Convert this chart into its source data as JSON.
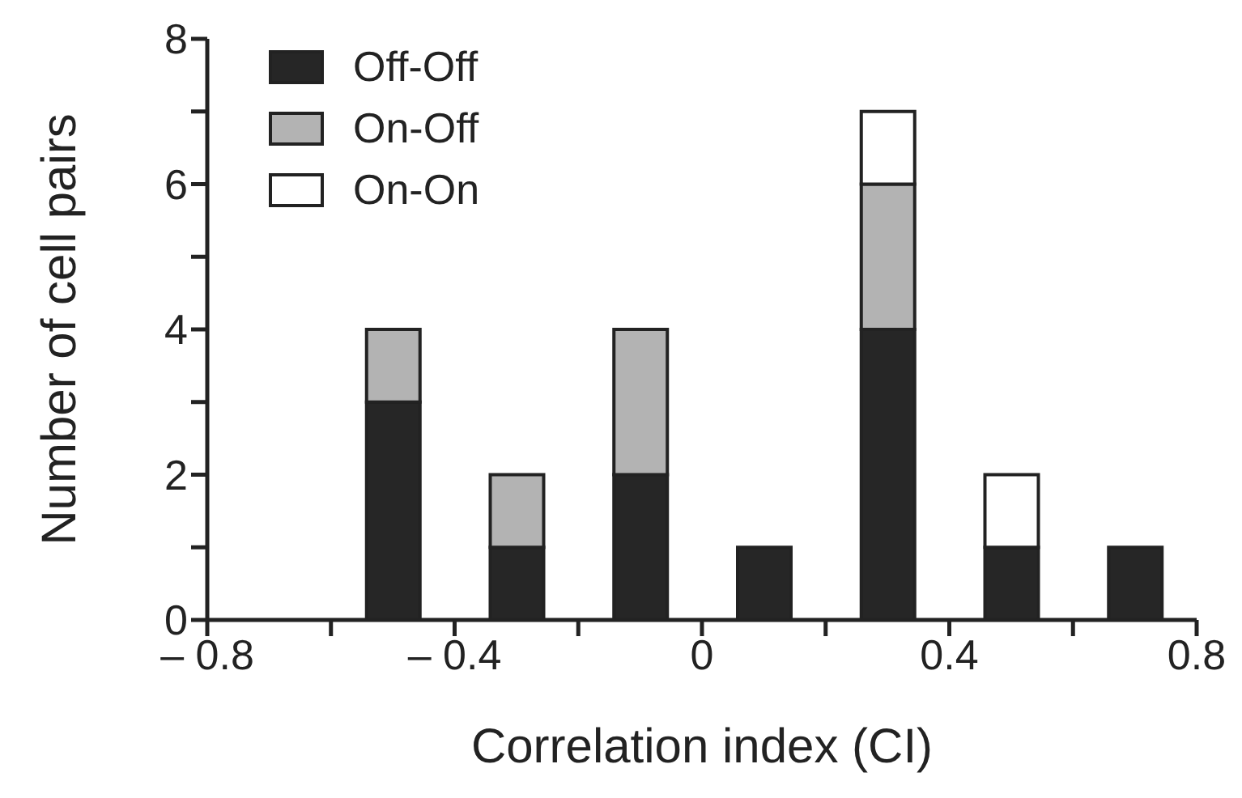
{
  "chart_data": {
    "type": "bar",
    "stacked": true,
    "xlabel": "Correlation index (CI)",
    "ylabel": "Number of cell pairs",
    "x": [
      -0.5,
      -0.3,
      -0.1,
      0.1,
      0.3,
      0.5,
      0.7
    ],
    "series": [
      {
        "name": "Off-Off",
        "color": "#262626",
        "values": [
          3,
          1,
          2,
          1,
          4,
          1,
          1
        ]
      },
      {
        "name": "On-Off",
        "color": "#b3b3b3",
        "values": [
          1,
          1,
          2,
          0,
          2,
          0,
          0
        ]
      },
      {
        "name": "On-On",
        "color": "#ffffff",
        "values": [
          0,
          0,
          0,
          0,
          1,
          1,
          0
        ]
      }
    ],
    "xlim": [
      -0.8,
      0.8
    ],
    "xticks": [
      {
        "value": -0.8,
        "label": "– 0.8"
      },
      {
        "value": -0.6,
        "label": null
      },
      {
        "value": -0.4,
        "label": "– 0.4"
      },
      {
        "value": -0.2,
        "label": null
      },
      0,
      {
        "value": 0.2,
        "label": null
      },
      0.4,
      {
        "value": 0.6,
        "label": null
      },
      0.8
    ],
    "ylim": [
      0,
      8
    ],
    "yticks": [
      0,
      {
        "value": 1,
        "label": null
      },
      2,
      {
        "value": 3,
        "label": null
      },
      4,
      {
        "value": 5,
        "label": null
      },
      6,
      {
        "value": 7,
        "label": null
      },
      8
    ],
    "legend": "top left",
    "grid": false
  }
}
